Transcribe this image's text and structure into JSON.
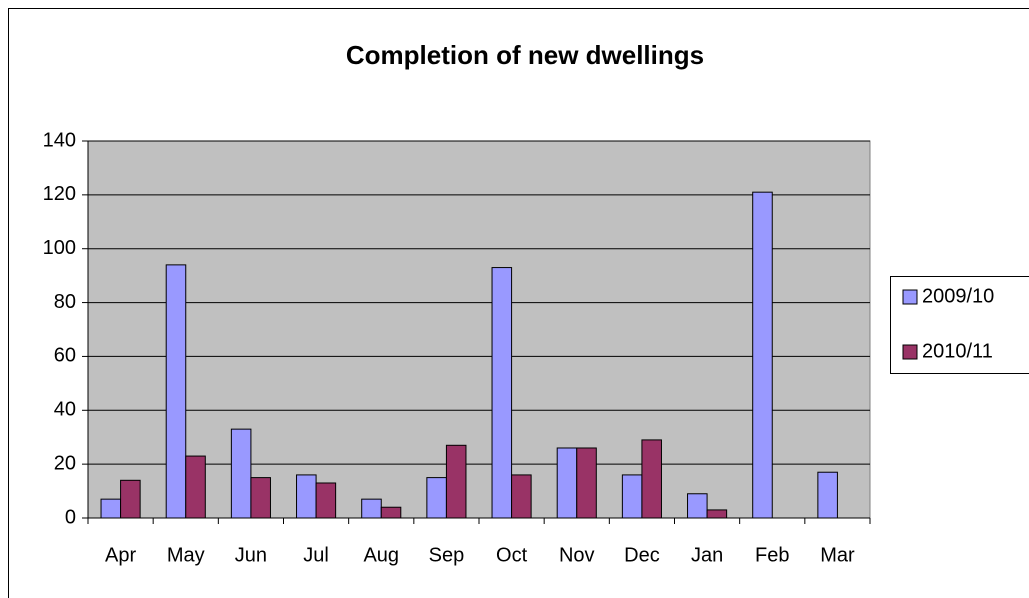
{
  "chart_data": {
    "type": "bar",
    "title": "Completion of new dwellings",
    "categories": [
      "Apr",
      "May",
      "Jun",
      "Jul",
      "Aug",
      "Sep",
      "Oct",
      "Nov",
      "Dec",
      "Jan",
      "Feb",
      "Mar"
    ],
    "series": [
      {
        "name": "2009/10",
        "color": "#9999ff",
        "values": [
          7,
          94,
          33,
          16,
          7,
          15,
          93,
          26,
          16,
          9,
          121,
          17
        ]
      },
      {
        "name": "2010/11",
        "color": "#993366",
        "values": [
          14,
          23,
          15,
          13,
          4,
          27,
          16,
          26,
          29,
          3,
          null,
          null
        ]
      }
    ],
    "ylim": [
      0,
      140
    ],
    "yticks": [
      0,
      20,
      40,
      60,
      80,
      100,
      120,
      140
    ],
    "grid": true,
    "legend": "right"
  }
}
